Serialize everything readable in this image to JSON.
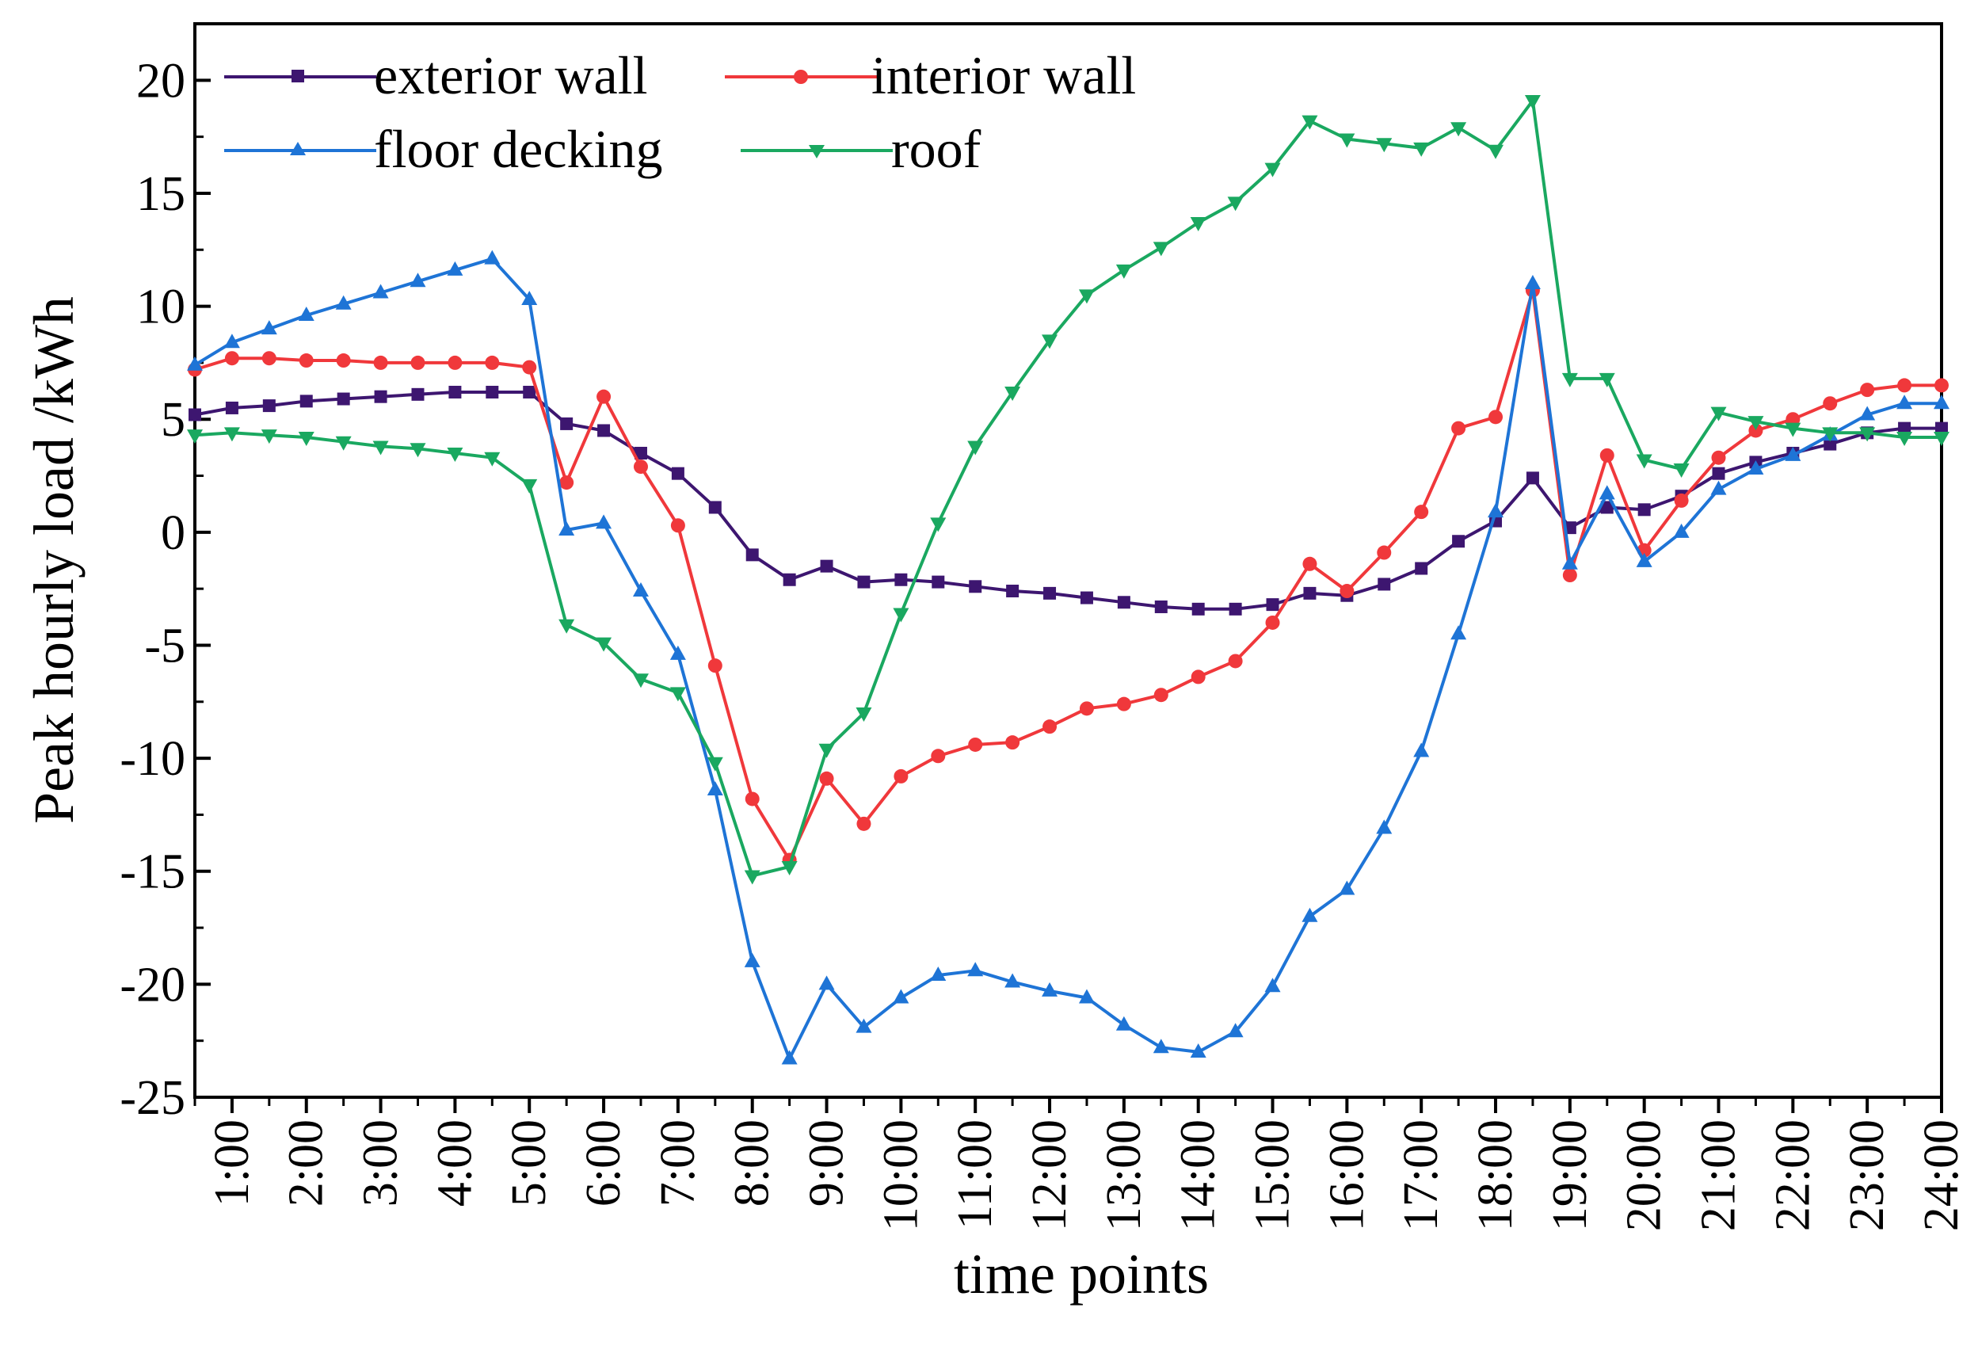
{
  "chart_data": {
    "type": "line",
    "xlabel": "time points",
    "ylabel": "Peak hourly load /kWh",
    "ylim": [
      -25,
      22.5
    ],
    "xlim": [
      0.5,
      24
    ],
    "yticks": [
      -25,
      -20,
      -15,
      -10,
      -5,
      0,
      5,
      10,
      15,
      20
    ],
    "ytick_labels": [
      "-25",
      "-20",
      "-15",
      "-10",
      "-5",
      "0",
      "5",
      "10",
      "15",
      "20"
    ],
    "xticks": [
      1,
      2,
      3,
      4,
      5,
      6,
      7,
      8,
      9,
      10,
      11,
      12,
      13,
      14,
      15,
      16,
      17,
      18,
      19,
      20,
      21,
      22,
      23,
      24
    ],
    "xtick_labels": [
      "1:00",
      "2:00",
      "3:00",
      "4:00",
      "5:00",
      "6:00",
      "7:00",
      "8:00",
      "9:00",
      "10:00",
      "11:00",
      "12:00",
      "13:00",
      "14:00",
      "15:00",
      "16:00",
      "17:00",
      "18:00",
      "19:00",
      "20:00",
      "21:00",
      "22:00",
      "23:00",
      "24:00"
    ],
    "x": [
      0.5,
      1,
      1.5,
      2,
      2.5,
      3,
      3.5,
      4,
      4.5,
      5,
      5.5,
      6,
      6.5,
      7,
      7.5,
      8,
      8.5,
      9,
      9.5,
      10,
      10.5,
      11,
      11.5,
      12,
      12.5,
      13,
      13.5,
      14,
      14.5,
      15,
      15.5,
      16,
      16.5,
      17,
      17.5,
      18,
      18.5,
      19,
      19.5,
      20,
      20.5,
      21,
      21.5,
      22,
      22.5,
      23,
      23.5,
      24
    ],
    "series": [
      {
        "name": "exterior wall",
        "color": "#3d1670",
        "marker": "square",
        "values": [
          5.2,
          5.5,
          5.6,
          5.8,
          5.9,
          6.0,
          6.1,
          6.2,
          6.2,
          6.2,
          4.8,
          4.5,
          3.5,
          2.6,
          1.1,
          -1.0,
          -2.1,
          -1.5,
          -2.2,
          -2.1,
          -2.2,
          -2.4,
          -2.6,
          -2.7,
          -2.9,
          -3.1,
          -3.3,
          -3.4,
          -3.4,
          -3.2,
          -2.7,
          -2.8,
          -2.3,
          -1.6,
          -0.4,
          0.5,
          2.4,
          0.2,
          1.1,
          1.0,
          1.6,
          2.6,
          3.1,
          3.5,
          3.9,
          4.4,
          4.6,
          4.6
        ]
      },
      {
        "name": "interior wall",
        "color": "#f0383b",
        "marker": "circle",
        "values": [
          7.2,
          7.7,
          7.7,
          7.6,
          7.6,
          7.5,
          7.5,
          7.5,
          7.5,
          7.3,
          2.2,
          6.0,
          2.9,
          0.3,
          -5.9,
          -11.8,
          -14.5,
          -10.9,
          -12.9,
          -10.8,
          -9.9,
          -9.4,
          -9.3,
          -8.6,
          -7.8,
          -7.6,
          -7.2,
          -6.4,
          -5.7,
          -4.0,
          -1.4,
          -2.6,
          -0.9,
          0.9,
          4.6,
          5.1,
          10.7,
          -1.9,
          3.4,
          -0.8,
          1.4,
          3.3,
          4.5,
          5.0,
          5.7,
          6.3,
          6.5,
          6.5
        ]
      },
      {
        "name": "floor decking",
        "color": "#1e74d6",
        "marker": "triangle-up",
        "values": [
          7.4,
          8.4,
          9.0,
          9.6,
          10.1,
          10.6,
          11.1,
          11.6,
          12.1,
          10.3,
          0.1,
          0.4,
          -2.6,
          -5.4,
          -11.4,
          -19.0,
          -23.3,
          -20.0,
          -21.9,
          -20.6,
          -19.6,
          -19.4,
          -19.9,
          -20.3,
          -20.6,
          -21.8,
          -22.8,
          -23.0,
          -22.1,
          -20.1,
          -17.0,
          -15.8,
          -13.1,
          -9.7,
          -4.5,
          0.9,
          11.0,
          -1.4,
          1.7,
          -1.3,
          0.0,
          1.9,
          2.8,
          3.4,
          4.3,
          5.2,
          5.7,
          5.7
        ]
      },
      {
        "name": "roof",
        "color": "#1aa860",
        "marker": "triangle-down",
        "values": [
          4.3,
          4.4,
          4.3,
          4.2,
          4.0,
          3.8,
          3.7,
          3.5,
          3.3,
          2.1,
          -4.1,
          -4.9,
          -6.5,
          -7.1,
          -10.2,
          -15.2,
          -14.8,
          -9.6,
          -8.0,
          -3.6,
          0.4,
          3.8,
          6.2,
          8.5,
          10.5,
          11.6,
          12.6,
          13.7,
          14.6,
          16.1,
          18.2,
          17.4,
          17.2,
          17.0,
          17.9,
          16.9,
          19.1,
          6.8,
          6.8,
          3.2,
          2.8,
          5.3,
          4.9,
          4.6,
          4.4,
          4.4,
          4.2,
          4.2
        ]
      }
    ],
    "legend": [
      {
        "label": "exterior wall",
        "series": 0
      },
      {
        "label": "interior wall",
        "series": 1
      },
      {
        "label": "floor decking",
        "series": 2
      },
      {
        "label": "roof",
        "series": 3
      }
    ],
    "legend_position": "top-left",
    "grid": false
  }
}
